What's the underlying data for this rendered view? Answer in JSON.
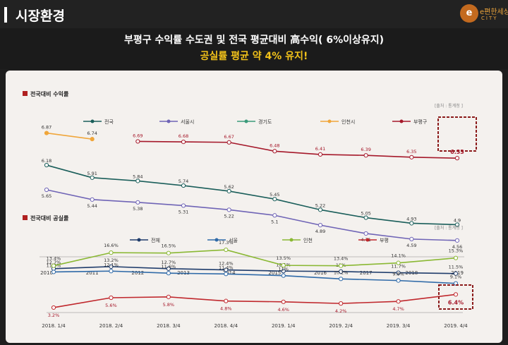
{
  "header": {
    "title": "시장환경",
    "logo_text": "e편한세상",
    "logo_sub": "CITY",
    "logo_mark": "e"
  },
  "headline": {
    "line1": "부평구 수익률 수도권 및 전국 평균대비 高수익( 6%이상유지)",
    "line2": "공실률 평균 약 4% 유지!"
  },
  "colors": {
    "panel_bg": "#f4f1ee",
    "highlight_box": "#8b1a1a",
    "section_marker": "#b02020"
  },
  "chart_data": [
    {
      "type": "line",
      "title": "전국대비 수익률",
      "source": "[출처 : 통계청 ]",
      "x": [
        "2010",
        "2011",
        "2012",
        "2013",
        "2014",
        "2015",
        "2016",
        "2017",
        "2018",
        "2019"
      ],
      "highlight_label": "6.33",
      "series": [
        {
          "name": "전국",
          "color": "#1a5e5a",
          "values": [
            6.18,
            5.91,
            5.84,
            5.74,
            5.62,
            5.45,
            5.22,
            5.05,
            4.93,
            4.9
          ]
        },
        {
          "name": "서울시",
          "color": "#6f64b6",
          "values": [
            5.65,
            5.44,
            5.38,
            5.31,
            5.22,
            5.1,
            4.89,
            4.71,
            4.59,
            4.56
          ]
        },
        {
          "name": "경기도",
          "color": "#3b9a7a",
          "values": [
            null,
            null,
            null,
            null,
            null,
            null,
            null,
            null,
            null,
            null
          ]
        },
        {
          "name": "인천시",
          "color": "#f0a63a",
          "values": [
            6.87,
            6.74,
            null,
            null,
            null,
            null,
            null,
            null,
            null,
            null
          ]
        },
        {
          "name": "부평구",
          "color": "#a5182a",
          "values": [
            null,
            null,
            6.69,
            6.68,
            6.67,
            6.48,
            6.41,
            6.39,
            6.35,
            6.33
          ]
        }
      ]
    },
    {
      "type": "line",
      "title": "전국대비 공실률",
      "source": "[출처 : 통계청 ]",
      "x": [
        "2018. 1/4",
        "2018. 2/4",
        "2018. 3/4",
        "2018. 4/4",
        "2019. 1/4",
        "2019. 2/4",
        "2019. 3/4",
        "2019. 4/4"
      ],
      "highlight_label": "6.4%",
      "series": [
        {
          "name": "전체",
          "color": "#1f3c6b",
          "values": [
            12.7,
            13.2,
            12.7,
            12.4,
            12.1,
            12.0,
            11.7,
            11.5
          ]
        },
        {
          "name": "서울",
          "color": "#2f6aa8",
          "values": [
            11.9,
            12.1,
            11.6,
            11.4,
            11.0,
            10.2,
            9.8,
            9.1
          ]
        },
        {
          "name": "인천",
          "color": "#8ab833",
          "values": [
            13.4,
            16.6,
            16.5,
            17.3,
            13.5,
            13.4,
            14.1,
            15.3
          ]
        },
        {
          "name": "부평",
          "color": "#c0282d",
          "values": [
            3.2,
            5.6,
            5.8,
            4.8,
            4.6,
            4.2,
            4.7,
            6.4
          ]
        }
      ]
    }
  ]
}
